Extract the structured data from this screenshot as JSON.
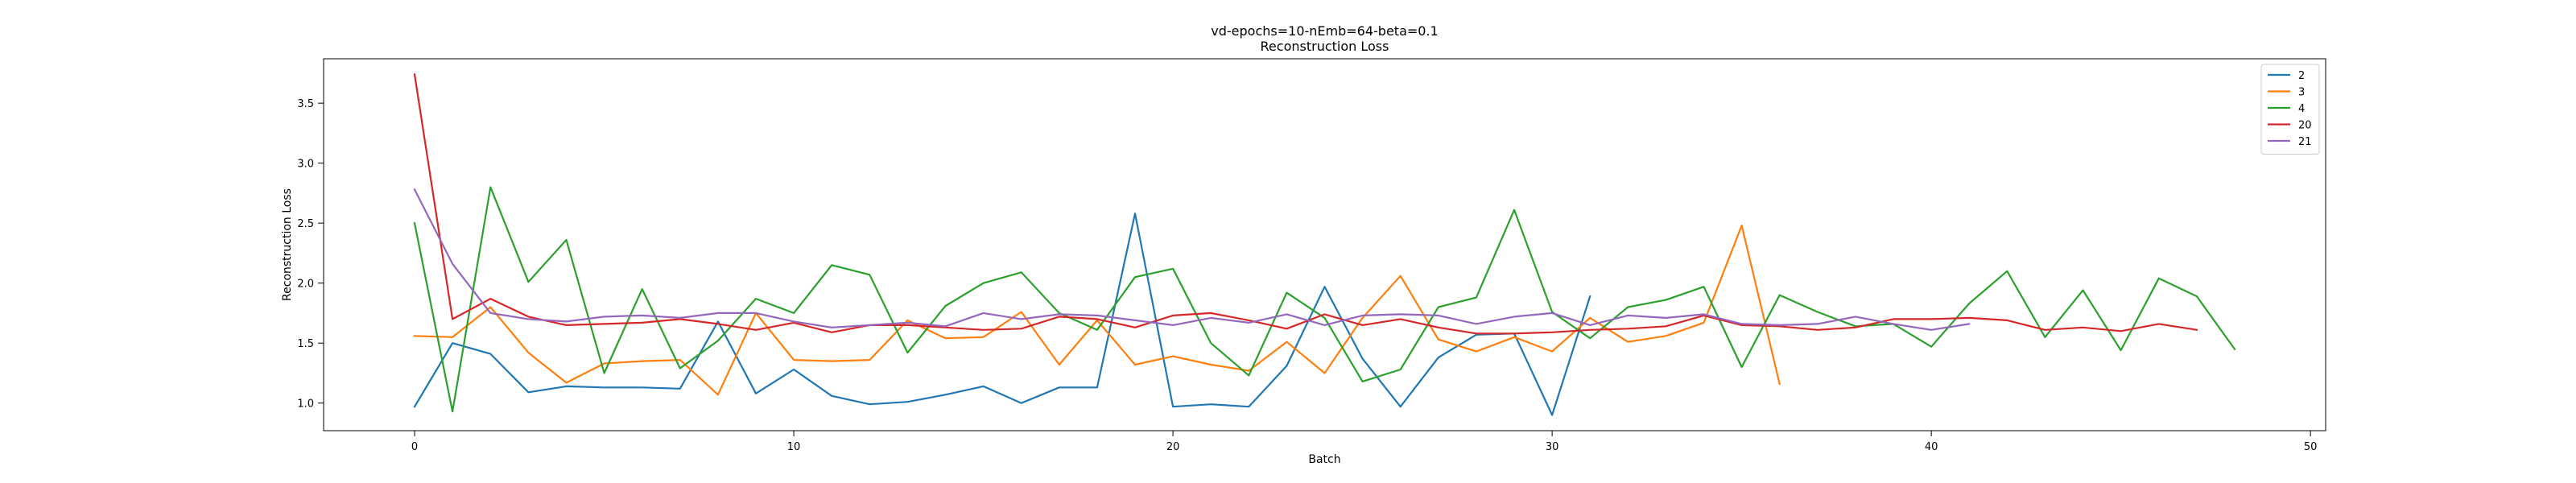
{
  "chart_data": {
    "type": "line",
    "title": "vd-epochs=10-nEmb=64-beta=0.1",
    "subtitle": "Reconstruction Loss",
    "xlabel": "Batch",
    "ylabel": "Reconstruction Loss",
    "xlim": [
      -2.4,
      50.4
    ],
    "ylim": [
      0.77,
      3.87
    ],
    "xticks": [
      0,
      10,
      20,
      30,
      40,
      50
    ],
    "yticks": [
      1.0,
      1.5,
      2.0,
      2.5,
      3.0,
      3.5
    ],
    "xtick_labels": [
      "0",
      "10",
      "20",
      "30",
      "40",
      "50"
    ],
    "ytick_labels": [
      "1.0",
      "1.5",
      "2.0",
      "2.5",
      "3.0",
      "3.5"
    ],
    "grid": false,
    "legend_position": "top-right",
    "series": [
      {
        "name": "2",
        "color": "#1f77b4",
        "values": [
          0.97,
          1.5,
          1.41,
          1.09,
          1.14,
          1.13,
          1.13,
          1.12,
          1.68,
          1.08,
          1.28,
          1.06,
          0.99,
          1.01,
          1.07,
          1.14,
          1.0,
          1.13,
          1.13,
          2.58,
          0.97,
          0.99,
          0.97,
          1.31,
          1.97,
          1.37,
          0.97,
          1.38,
          1.57,
          1.58,
          0.9,
          1.89
        ]
      },
      {
        "name": "3",
        "color": "#ff7f0e",
        "values": [
          1.56,
          1.55,
          1.8,
          1.42,
          1.17,
          1.33,
          1.35,
          1.36,
          1.07,
          1.75,
          1.36,
          1.35,
          1.36,
          1.69,
          1.54,
          1.55,
          1.76,
          1.32,
          1.69,
          1.32,
          1.39,
          1.32,
          1.27,
          1.51,
          1.25,
          1.71,
          2.06,
          1.53,
          1.43,
          1.55,
          1.43,
          1.71,
          1.51,
          1.56,
          1.67,
          2.48,
          1.16
        ]
      },
      {
        "name": "4",
        "color": "#2ca02c",
        "values": [
          2.5,
          0.93,
          2.8,
          2.01,
          2.36,
          1.25,
          1.95,
          1.29,
          1.52,
          1.87,
          1.75,
          2.15,
          2.07,
          1.42,
          1.81,
          2.0,
          2.09,
          1.75,
          1.61,
          2.05,
          2.12,
          1.5,
          1.23,
          1.92,
          1.71,
          1.18,
          1.28,
          1.8,
          1.88,
          2.61,
          1.76,
          1.54,
          1.8,
          1.86,
          1.97,
          1.3,
          1.9,
          1.76,
          1.64,
          1.66,
          1.47,
          1.83,
          2.1,
          1.55,
          1.94,
          1.44,
          2.04,
          1.89,
          1.45
        ]
      },
      {
        "name": "20",
        "color": "#d62728",
        "values": [
          3.74,
          1.7,
          1.87,
          1.72,
          1.65,
          1.66,
          1.67,
          1.7,
          1.66,
          1.61,
          1.67,
          1.59,
          1.65,
          1.65,
          1.63,
          1.61,
          1.62,
          1.72,
          1.7,
          1.63,
          1.73,
          1.75,
          1.69,
          1.62,
          1.74,
          1.65,
          1.7,
          1.63,
          1.58,
          1.58,
          1.59,
          1.61,
          1.62,
          1.64,
          1.73,
          1.65,
          1.64,
          1.61,
          1.63,
          1.7,
          1.7,
          1.71,
          1.69,
          1.61,
          1.63,
          1.6,
          1.66,
          1.61
        ]
      },
      {
        "name": "21",
        "color": "#9467bd",
        "values": [
          2.78,
          2.16,
          1.75,
          1.7,
          1.68,
          1.72,
          1.73,
          1.71,
          1.75,
          1.75,
          1.68,
          1.63,
          1.65,
          1.67,
          1.64,
          1.75,
          1.7,
          1.74,
          1.73,
          1.69,
          1.65,
          1.71,
          1.67,
          1.74,
          1.65,
          1.73,
          1.74,
          1.73,
          1.66,
          1.72,
          1.75,
          1.65,
          1.73,
          1.71,
          1.74,
          1.66,
          1.65,
          1.66,
          1.72,
          1.66,
          1.61,
          1.66
        ]
      }
    ]
  }
}
